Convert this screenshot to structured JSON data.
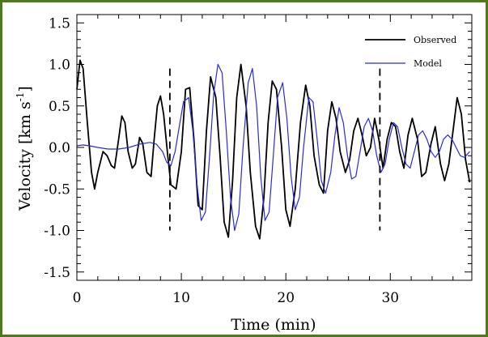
{
  "chart_data": {
    "type": "line",
    "title": "",
    "xlabel": "Time (min)",
    "ylabel": "Velocity [km s",
    "ylabel_sup": "-1",
    "ylabel_end": "]",
    "xlim": [
      0,
      37.8
    ],
    "ylim": [
      -1.6,
      1.6
    ],
    "x_ticks": [
      0,
      10,
      20,
      30
    ],
    "x_tick_labels": [
      "0",
      "10",
      "20",
      "30"
    ],
    "y_ticks": [
      1.5,
      1.0,
      0.5,
      0.0,
      -0.5,
      -1.0,
      -1.5
    ],
    "y_tick_labels": [
      "1.5",
      "1.0",
      "0.5",
      "0.0",
      "-0.5",
      "-1.0",
      "-1.5"
    ],
    "vlines": [
      {
        "x": 8.9,
        "y_from": -1.0,
        "y_to": 0.95,
        "style": "dashed"
      },
      {
        "x": 29.0,
        "y_from": -1.0,
        "y_to": 0.95,
        "style": "dashed"
      }
    ],
    "series": [
      {
        "name": "Observed",
        "color": "#000000",
        "x": [
          0,
          0.3,
          0.6,
          1.0,
          1.4,
          1.7,
          2.0,
          2.5,
          2.9,
          3.3,
          3.6,
          4.0,
          4.3,
          4.6,
          4.9,
          5.3,
          5.6,
          6.0,
          6.3,
          6.7,
          7.1,
          7.4,
          7.7,
          8.0,
          8.3,
          8.7,
          9.0,
          9.5,
          10.0,
          10.4,
          10.8,
          11.2,
          11.6,
          12.0,
          12.4,
          12.8,
          13.3,
          13.7,
          14.1,
          14.5,
          14.9,
          15.3,
          15.7,
          16.2,
          16.6,
          17.1,
          17.5,
          17.9,
          18.3,
          18.7,
          19.1,
          19.6,
          20.0,
          20.4,
          20.9,
          21.4,
          21.9,
          22.3,
          22.7,
          23.2,
          23.6,
          24.0,
          24.4,
          24.8,
          25.2,
          25.7,
          26.1,
          26.5,
          26.9,
          27.3,
          27.7,
          28.1,
          28.5,
          28.9,
          29.3,
          29.7,
          30.1,
          30.5,
          30.9,
          31.3,
          31.7,
          32.1,
          32.6,
          33.0,
          33.4,
          33.9,
          34.3,
          34.8,
          35.2,
          35.6,
          36.0,
          36.4,
          36.8,
          37.2,
          37.6
        ],
        "y": [
          0.7,
          1.05,
          0.95,
          0.3,
          -0.3,
          -0.5,
          -0.3,
          -0.05,
          -0.1,
          -0.22,
          -0.25,
          0.1,
          0.38,
          0.3,
          -0.05,
          -0.25,
          -0.2,
          0.12,
          0.05,
          -0.3,
          -0.35,
          0.1,
          0.5,
          0.62,
          0.4,
          -0.1,
          -0.45,
          -0.5,
          -0.05,
          0.7,
          0.72,
          0.1,
          -0.7,
          -0.75,
          0.2,
          0.85,
          0.6,
          -0.1,
          -0.9,
          -1.08,
          -0.4,
          0.6,
          1.0,
          0.5,
          -0.3,
          -0.95,
          -1.1,
          -0.6,
          0.3,
          0.8,
          0.7,
          0.0,
          -0.75,
          -0.95,
          -0.5,
          0.3,
          0.75,
          0.5,
          -0.1,
          -0.45,
          -0.55,
          0.2,
          0.55,
          0.35,
          -0.05,
          -0.3,
          -0.15,
          0.2,
          0.35,
          0.15,
          -0.1,
          0.0,
          0.35,
          0.1,
          -0.25,
          0.1,
          0.3,
          0.25,
          -0.05,
          -0.25,
          0.15,
          0.35,
          0.1,
          -0.35,
          -0.3,
          0.05,
          0.25,
          -0.2,
          -0.4,
          -0.2,
          0.2,
          0.6,
          0.4,
          -0.15,
          -0.42
        ]
      },
      {
        "name": "Model",
        "color": "#2b2bd9",
        "x": [
          0,
          0.6,
          1.2,
          2.0,
          3.0,
          4.0,
          5.0,
          6.0,
          7.0,
          7.6,
          8.2,
          8.6,
          9.0,
          9.4,
          9.8,
          10.2,
          10.7,
          11.1,
          11.5,
          11.9,
          12.3,
          12.7,
          13.1,
          13.5,
          13.9,
          14.3,
          14.7,
          15.1,
          15.5,
          15.9,
          16.4,
          16.8,
          17.2,
          17.6,
          18.0,
          18.4,
          18.8,
          19.2,
          19.7,
          20.1,
          20.5,
          20.9,
          21.3,
          21.7,
          22.2,
          22.6,
          23.0,
          23.4,
          23.8,
          24.3,
          24.7,
          25.1,
          25.5,
          25.9,
          26.3,
          26.7,
          27.1,
          27.5,
          27.9,
          28.3,
          28.7,
          29.1,
          29.5,
          29.9,
          30.3,
          30.7,
          31.1,
          31.5,
          31.9,
          32.3,
          32.7,
          33.1,
          33.5,
          33.9,
          34.3,
          34.7,
          35.1,
          35.5,
          35.9,
          36.3,
          36.7,
          37.1,
          37.6
        ],
        "y": [
          0.02,
          0.03,
          0.02,
          0.0,
          -0.02,
          -0.02,
          0.0,
          0.04,
          0.06,
          0.04,
          -0.05,
          -0.18,
          -0.22,
          -0.05,
          0.25,
          0.55,
          0.6,
          0.2,
          -0.45,
          -0.88,
          -0.78,
          -0.1,
          0.65,
          1.0,
          0.9,
          0.2,
          -0.6,
          -1.0,
          -0.8,
          0.0,
          0.78,
          0.95,
          0.5,
          -0.35,
          -0.88,
          -0.78,
          -0.1,
          0.6,
          0.78,
          0.35,
          -0.35,
          -0.75,
          -0.6,
          0.0,
          0.6,
          0.55,
          0.1,
          -0.4,
          -0.55,
          -0.3,
          0.15,
          0.48,
          0.3,
          -0.1,
          -0.38,
          -0.35,
          -0.05,
          0.25,
          0.35,
          0.2,
          -0.1,
          -0.3,
          -0.2,
          0.1,
          0.3,
          0.25,
          0.0,
          -0.2,
          -0.25,
          -0.05,
          0.15,
          0.2,
          0.1,
          -0.05,
          -0.12,
          -0.05,
          0.1,
          0.15,
          0.1,
          0.0,
          -0.1,
          -0.12,
          -0.05
        ]
      }
    ],
    "legend": {
      "position": "top-right",
      "entries": [
        "Observed",
        "Model"
      ]
    }
  }
}
